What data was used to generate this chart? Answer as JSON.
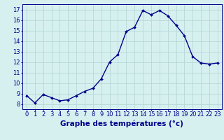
{
  "hours": [
    0,
    1,
    2,
    3,
    4,
    5,
    6,
    7,
    8,
    9,
    10,
    11,
    12,
    13,
    14,
    15,
    16,
    17,
    18,
    19,
    20,
    21,
    22,
    23
  ],
  "temperatures": [
    8.8,
    8.1,
    8.9,
    8.6,
    8.3,
    8.4,
    8.8,
    9.2,
    9.5,
    10.4,
    12.0,
    12.7,
    14.9,
    15.3,
    16.9,
    16.5,
    16.9,
    16.4,
    15.5,
    14.5,
    12.5,
    11.9,
    11.8,
    11.9
  ],
  "line_color": "#00008b",
  "marker": "D",
  "marker_size": 2.0,
  "bg_color": "#d6f0f0",
  "grid_color": "#b8d8d8",
  "xlabel": "Graphe des températures (°c)",
  "xlabel_color": "#00008b",
  "xlabel_fontsize": 7.5,
  "tick_color": "#00008b",
  "tick_fontsize": 6.0,
  "ylim": [
    7.5,
    17.5
  ],
  "yticks": [
    8,
    9,
    10,
    11,
    12,
    13,
    14,
    15,
    16,
    17
  ],
  "xlim": [
    -0.5,
    23.5
  ],
  "linewidth": 1.0
}
